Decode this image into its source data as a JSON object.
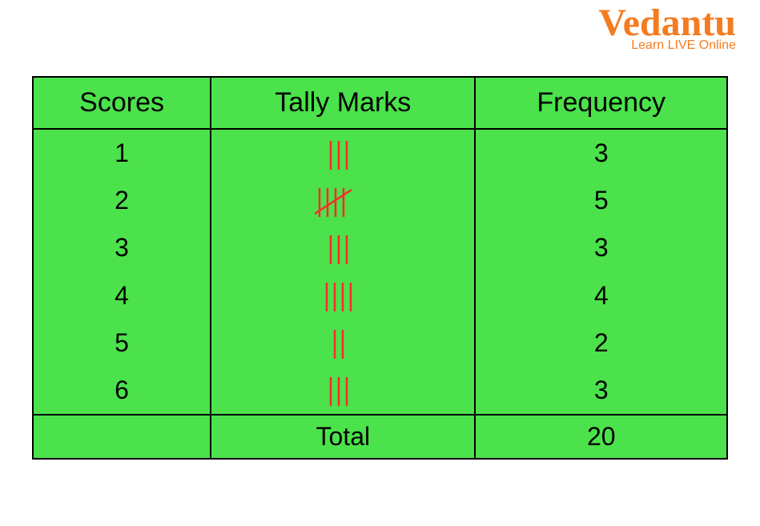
{
  "logo": {
    "brand": "Vedantu",
    "tagline": "Learn LIVE Online",
    "color": "#f47c20"
  },
  "table": {
    "background_color": "#4be24b",
    "border_color": "#000000",
    "tally_color": "#ff2a2a",
    "header_fontsize": 34,
    "cell_fontsize": 32,
    "columns": [
      "Scores",
      "Tally Marks",
      "Frequency"
    ],
    "rows": [
      {
        "score": "1",
        "tally": 3,
        "frequency": "3"
      },
      {
        "score": "2",
        "tally": 5,
        "frequency": "5"
      },
      {
        "score": "3",
        "tally": 3,
        "frequency": "3"
      },
      {
        "score": "4",
        "tally": 4,
        "frequency": "4"
      },
      {
        "score": "5",
        "tally": 2,
        "frequency": "2"
      },
      {
        "score": "6",
        "tally": 3,
        "frequency": "3"
      }
    ],
    "total_label": "Total",
    "total_value": "20"
  }
}
